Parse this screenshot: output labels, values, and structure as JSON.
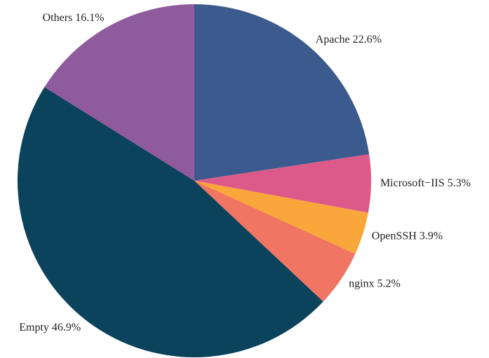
{
  "chart_data": {
    "type": "pie",
    "categories": [
      "Apache",
      "Microsoft−IIS",
      "OpenSSH",
      "nginx",
      "Empty",
      "Others"
    ],
    "values": [
      22.6,
      5.3,
      3.9,
      5.2,
      46.9,
      16.1
    ],
    "value_labels": [
      "22.6%",
      "5.3%",
      "3.9%",
      "5.2%",
      "46.9%",
      "16.1%"
    ],
    "colors": [
      "#3b5a8d",
      "#dc5a8a",
      "#f9a63a",
      "#f07562",
      "#0b425c",
      "#8f5b9c"
    ]
  }
}
